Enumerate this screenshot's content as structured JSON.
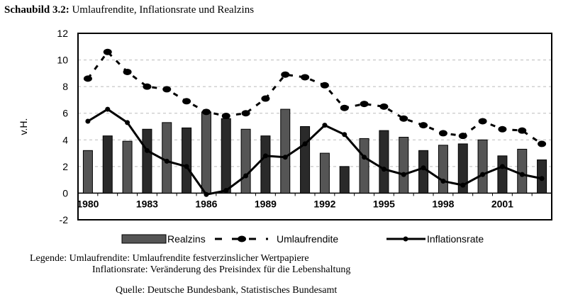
{
  "chart_data": {
    "type": "bar+line",
    "title_bold": "Schaubild 3.2:",
    "title": "Umlaufrendite, Inflationsrate und Realzins",
    "ylabel": "v.H.",
    "ylim": [
      -2,
      12
    ],
    "yticks": [
      -2,
      0,
      2,
      4,
      6,
      8,
      10,
      12
    ],
    "x": [
      1980,
      1981,
      1982,
      1983,
      1984,
      1985,
      1986,
      1987,
      1988,
      1989,
      1990,
      1991,
      1992,
      1993,
      1994,
      1995,
      1996,
      1997,
      1998,
      1999,
      2000,
      2001,
      2002,
      2003
    ],
    "xtick_labels": [
      "1980",
      "1983",
      "1986",
      "1989",
      "1992",
      "1995",
      "1998",
      "2001"
    ],
    "grid": "horizontal dashed",
    "legend_position": "bottom",
    "series": [
      {
        "name": "Realzins",
        "type": "bar",
        "values": [
          3.2,
          4.3,
          3.9,
          4.8,
          5.3,
          4.9,
          6.1,
          5.6,
          4.8,
          4.3,
          6.3,
          5.0,
          3.0,
          2.0,
          4.1,
          4.7,
          4.2,
          3.2,
          3.6,
          3.7,
          4.0,
          2.8,
          3.3,
          2.5
        ]
      },
      {
        "name": "Umlaufrendite",
        "type": "line-dashed",
        "values": [
          8.6,
          10.6,
          9.1,
          8.0,
          7.8,
          6.9,
          6.1,
          5.8,
          6.0,
          7.1,
          8.9,
          8.7,
          8.1,
          6.4,
          6.7,
          6.5,
          5.6,
          5.1,
          4.5,
          4.3,
          5.4,
          4.8,
          4.7,
          3.7
        ]
      },
      {
        "name": "Inflationsrate",
        "type": "line",
        "values": [
          5.4,
          6.3,
          5.3,
          3.2,
          2.4,
          2.0,
          -0.1,
          0.2,
          1.3,
          2.8,
          2.7,
          3.7,
          5.1,
          4.4,
          2.7,
          1.8,
          1.4,
          1.9,
          0.9,
          0.6,
          1.4,
          2.0,
          1.4,
          1.1
        ]
      }
    ]
  },
  "footer": {
    "legend_line1": "Legende: Umlaufrendite: Umlaufrendite festverzinslicher Wertpapiere",
    "legend_line2": "Inflationsrate: Veränderung des Preisindex für die Lebenshaltung",
    "source": "Quelle: Deutsche Bundesbank, Statistisches Bundesamt"
  }
}
